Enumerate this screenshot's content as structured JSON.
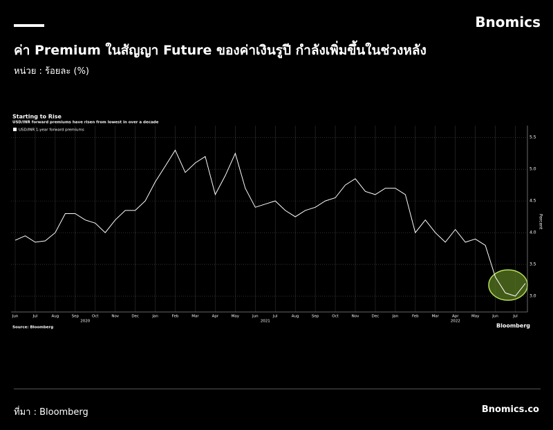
{
  "header": {
    "brand": "Bnomics",
    "title": "ค่า Premium ในสัญญา Future ของค่าเงินรูปี กำลังเพิ่มขึ้นในช่วงหลัง",
    "unit": "หน่วย : ร้อยละ (%)"
  },
  "footer": {
    "source": "ที่มา : Bloomberg",
    "site": "Bnomics.co"
  },
  "chart_data": {
    "type": "line",
    "title": "Starting to Rise",
    "subtitle": "USD/INR forward premiums have risen from lowest in over a decade",
    "y_label": "Percent",
    "source": "Source: Bloomberg",
    "logo": "Bloomberg",
    "categories": [
      "Jun",
      null,
      "Jul",
      null,
      "Aug",
      null,
      "Sep",
      null,
      "Oct",
      null,
      "Nov",
      null,
      "Dec",
      null,
      "Jan",
      null,
      "Feb",
      null,
      "Mar",
      null,
      "Apr",
      null,
      "May",
      null,
      "Jun",
      null,
      "Jul",
      null,
      "Aug",
      null,
      "Sep",
      null,
      "Oct",
      null,
      "Nov",
      null,
      "Dec",
      null,
      "Jan",
      null,
      "Feb",
      null,
      "Mar",
      null,
      "Apr",
      null,
      "May",
      null,
      "Jun",
      null,
      "Jul",
      null
    ],
    "x_group_labels": [
      "2020",
      "2021",
      "2022"
    ],
    "series": [
      {
        "name": "USD/INR 1-year forward premiums",
        "color": "#ffffff",
        "values": [
          3.88,
          3.95,
          3.85,
          3.87,
          4.0,
          4.3,
          4.3,
          4.2,
          4.15,
          4.0,
          4.2,
          4.35,
          4.35,
          4.5,
          4.8,
          5.05,
          5.3,
          4.95,
          5.1,
          5.2,
          4.6,
          4.9,
          5.25,
          4.7,
          4.4,
          4.45,
          4.5,
          4.35,
          4.25,
          4.35,
          4.4,
          4.5,
          4.55,
          4.75,
          4.85,
          4.65,
          4.6,
          4.7,
          4.7,
          4.6,
          4.0,
          4.2,
          4.0,
          3.85,
          4.05,
          3.85,
          3.9,
          3.8,
          3.3,
          3.05,
          3.0,
          3.2
        ]
      }
    ],
    "ylim": [
      2.75,
      5.6
    ],
    "yticks": [
      {
        "value": 3,
        "label": "3.0"
      },
      3.5,
      {
        "value": 4,
        "label": "4.0"
      },
      4.5,
      {
        "value": 5,
        "label": "5.0"
      },
      5.5
    ],
    "grid": true,
    "legend": "top-left"
  }
}
